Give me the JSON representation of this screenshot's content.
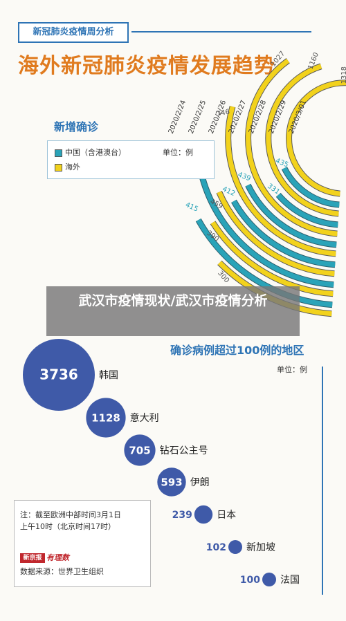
{
  "header": {
    "tag": "新冠肺炎疫情周分析",
    "title": "海外新冠肺炎疫情发展趋势"
  },
  "overlay_title": "武汉市疫情现状/武汉市疫情分析",
  "arc_section": {
    "title": "新增确诊",
    "unit": "单位：例",
    "legend": [
      {
        "label": "中国（含港澳台）",
        "color": "#2aa3b8"
      },
      {
        "label": "海外",
        "color": "#f2d21c"
      }
    ]
  },
  "bubble_section": {
    "title": "确诊病例超过100例的地区",
    "unit": "单位：例",
    "bubble_color": "#3f5aa8"
  },
  "note": {
    "line1": "注：截至欧洲中部时间3月1日",
    "line2": "上午10时（北京时间17时）",
    "logo_a": "新京报",
    "logo_b": "有理数",
    "source": "数据来源：世界卫生组织"
  },
  "chart_data": [
    {
      "type": "bar",
      "subtype": "radial",
      "title": "新增确诊",
      "categories": [
        "2020/2/24",
        "2020/2/25",
        "2020/2/26",
        "2020/2/27",
        "2020/2/28",
        "2020/2/29",
        "2020/3/01"
      ],
      "series": [
        {
          "name": "中国（含港澳台）",
          "values": [
            415,
            518,
            412,
            439,
            331,
            435,
            0
          ]
        },
        {
          "name": "海外",
          "values": [
            300,
            390,
            459,
            746,
            1027,
            1160,
            1318
          ]
        }
      ]
    },
    {
      "type": "scatter",
      "subtype": "bubble",
      "title": "确诊病例超过100例的地区",
      "categories": [
        "韩国",
        "意大利",
        "钻石公主号",
        "伊朗",
        "日本",
        "新加坡",
        "法国"
      ],
      "values": [
        3736,
        1128,
        705,
        593,
        239,
        102,
        100
      ]
    }
  ]
}
